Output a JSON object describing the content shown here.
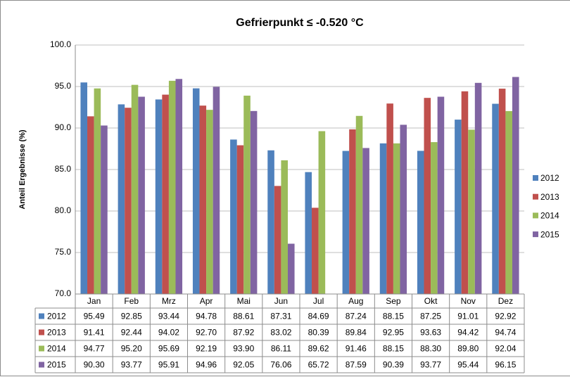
{
  "chart_data": {
    "type": "bar",
    "title": "Gefrierpunkt ≤  -0.520 °C",
    "y_label": "Anteil Ergebnisse (%)",
    "categories": [
      "Jan",
      "Feb",
      "Mrz",
      "Apr",
      "Mai",
      "Jun",
      "Jul",
      "Aug",
      "Sep",
      "Okt",
      "Nov",
      "Dez"
    ],
    "series": [
      {
        "name": "2012",
        "color": "#4f81bd",
        "values": [
          95.49,
          92.85,
          93.44,
          94.78,
          88.61,
          87.31,
          84.69,
          87.24,
          88.15,
          87.25,
          91.01,
          92.92
        ],
        "value_labels": [
          "95.49",
          "92.85",
          "93.44",
          "94.78",
          "88.61",
          "87.31",
          "84.69",
          "87.24",
          "88.15",
          "87.25",
          "91.01",
          "92.92"
        ]
      },
      {
        "name": "2013",
        "color": "#c0504d",
        "values": [
          91.41,
          92.44,
          94.02,
          92.7,
          87.92,
          83.02,
          80.39,
          89.84,
          92.95,
          93.63,
          94.42,
          94.74
        ],
        "value_labels": [
          "91.41",
          "92.44",
          "94.02",
          "92.70",
          "87.92",
          "83.02",
          "80.39",
          "89.84",
          "92.95",
          "93.63",
          "94.42",
          "94.74"
        ]
      },
      {
        "name": "2014",
        "color": "#9bbb59",
        "values": [
          94.77,
          95.2,
          95.69,
          92.19,
          93.9,
          86.11,
          89.62,
          91.46,
          88.15,
          88.3,
          89.8,
          92.04
        ],
        "value_labels": [
          "94.77",
          "95.20",
          "95.69",
          "92.19",
          "93.90",
          "86.11",
          "89.62",
          "91.46",
          "88.15",
          "88.30",
          "89.80",
          "92.04"
        ]
      },
      {
        "name": "2015",
        "color": "#8064a2",
        "values": [
          90.3,
          93.77,
          95.91,
          94.96,
          92.05,
          76.06,
          65.72,
          87.59,
          90.39,
          93.77,
          95.44,
          96.15
        ],
        "value_labels": [
          "90.30",
          "93.77",
          "95.91",
          "94.96",
          "92.05",
          "76.06",
          "65.72",
          "87.59",
          "90.39",
          "93.77",
          "95.44",
          "96.15"
        ]
      }
    ],
    "ylim": [
      70,
      100
    ],
    "yticks": [
      {
        "value": 70,
        "label": "70.0"
      },
      {
        "value": 75,
        "label": "75.0"
      },
      {
        "value": 80,
        "label": "80.0"
      },
      {
        "value": 85,
        "label": "85.0"
      },
      {
        "value": 90,
        "label": "90.0"
      },
      {
        "value": 95,
        "label": "95.0"
      },
      {
        "value": 100,
        "label": "100.0"
      }
    ],
    "grid": true,
    "legend": "right"
  }
}
